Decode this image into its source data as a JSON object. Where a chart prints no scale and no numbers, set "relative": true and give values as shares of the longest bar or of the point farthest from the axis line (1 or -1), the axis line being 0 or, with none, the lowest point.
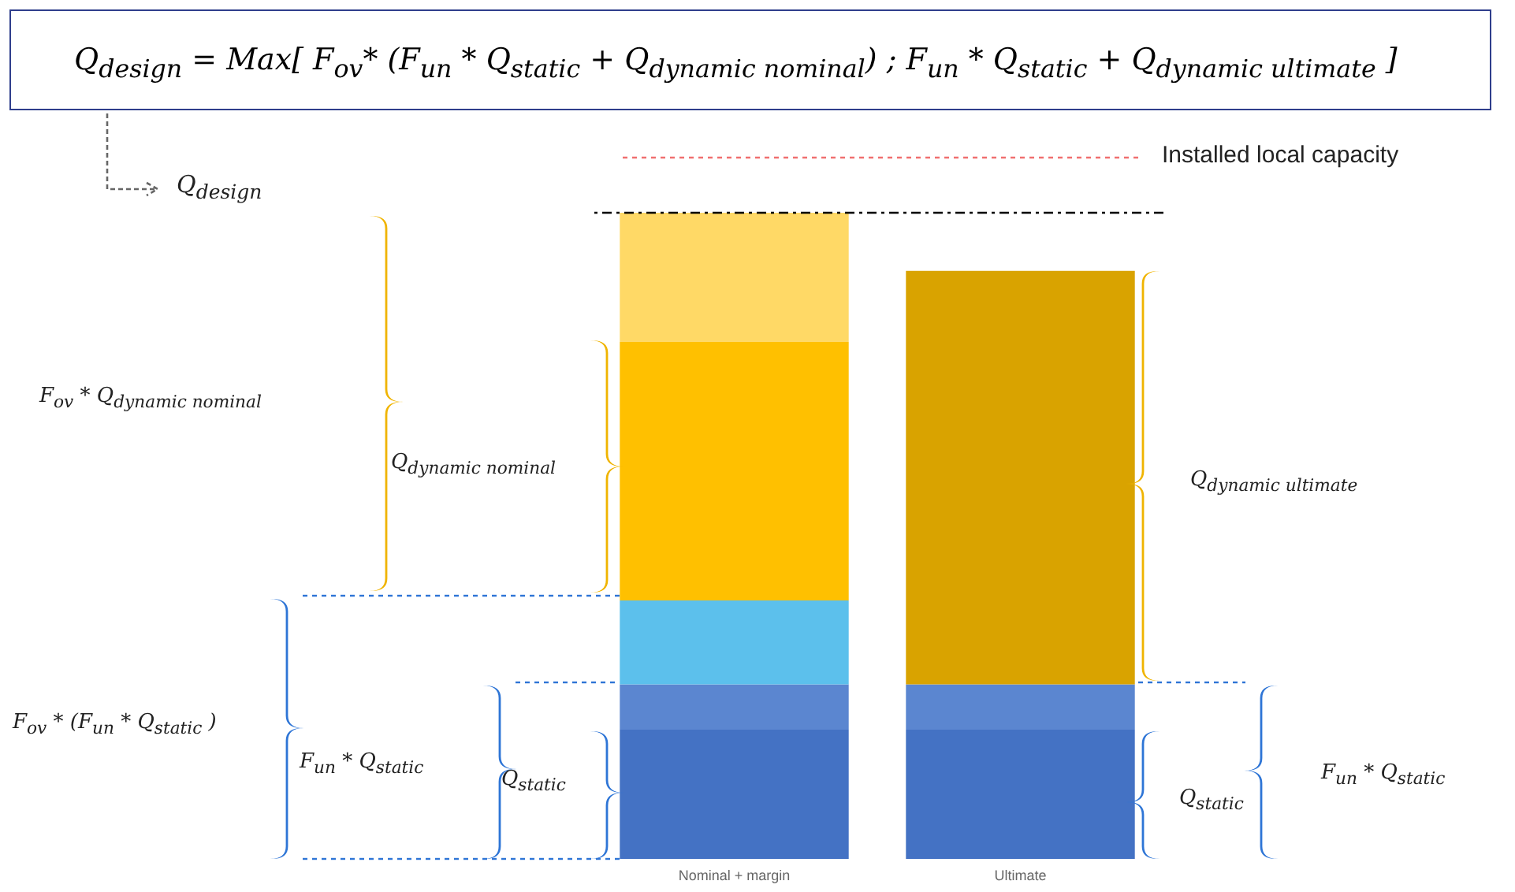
{
  "chart_data": {
    "type": "bar",
    "stacked": true,
    "relative": true,
    "title": "Q$_{design}$ = Max[  F$_{ov}$* (F$_{un}$ * Q$_{static}$ + Q$_{dynamic nominal}$) ; F$_{un}$ * Q$_{static}$ + Q$_{dynamic ultimate}$  ]",
    "categories": [
      "Nominal + margin",
      "Ultimate"
    ],
    "series": [
      {
        "color": "#4472c4",
        "values": [
          0.2,
          0.2
        ]
      },
      {
        "color": "#5b86d0",
        "values": [
          0.07,
          0.07
        ]
      },
      {
        "color": "#5cc0ec",
        "values": [
          0.13,
          null
        ]
      },
      {
        "colors": [
          "#ffc000",
          "#d9a300"
        ],
        "values": [
          0.4,
          0.64
        ]
      },
      {
        "color": "#ffd966",
        "values": [
          0.2,
          null
        ]
      }
    ],
    "ref_lines": [
      {
        "axis": "y",
        "value": 1,
        "label": "Q$_{design}$",
        "line_style": "dashdot",
        "color": "#000000"
      }
    ],
    "annotations": [
      "Installed local capacity",
      "F$_{ov}$ * Q$_{dynamic nominal}$",
      "Q$_{dynamic nominal}$",
      "Q$_{dynamic ultimate}$",
      "F$_{ov}$ * (F$_{un}$ * Q$_{static}$ )",
      "F$_{un}$ * Q$_{static}$",
      "Q$_{static}$",
      "Q$_{static}$",
      "F$_{un}$ * Q$_{static}$"
    ]
  }
}
